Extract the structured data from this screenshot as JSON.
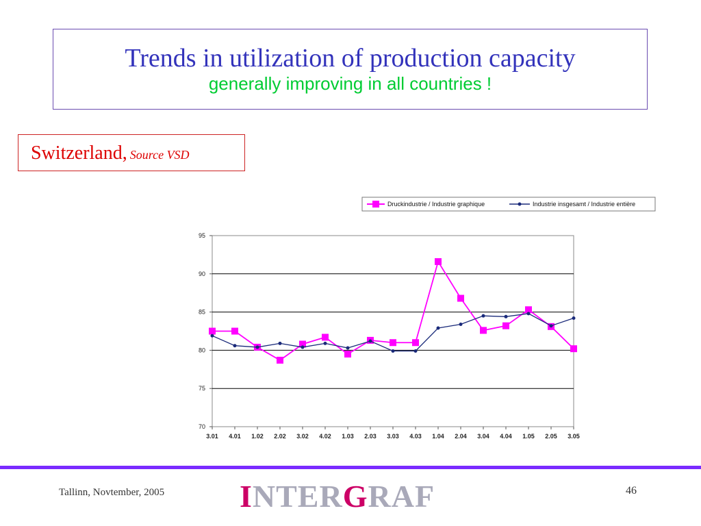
{
  "slide": {
    "title": "Trends in utilization of production capacity",
    "subtitle": "generally improving in all countries !",
    "country": "Switzerland,",
    "source": "Source VSD",
    "footer_left": "Tallinn, Novtember, 2005",
    "logo_parts": [
      "I",
      "NTER",
      "G",
      "RAF"
    ],
    "page_number": "46"
  },
  "chart_data": {
    "type": "line",
    "categories": [
      "3.01",
      "4.01",
      "1.02",
      "2.02",
      "3.02",
      "4.02",
      "1.03",
      "2.03",
      "3.03",
      "4.03",
      "1.04",
      "2.04",
      "3.04",
      "4.04",
      "1.05",
      "2.05",
      "3.05"
    ],
    "ylim": [
      70,
      95
    ],
    "yticks": [
      "70",
      "75",
      "80",
      "85",
      "90",
      "95"
    ],
    "grid": true,
    "legend_position": "top-right",
    "series": [
      {
        "name": "Druckindustrie / Industrie graphique",
        "color": "#ff00ff",
        "marker": "square",
        "values": [
          82.5,
          82.5,
          80.4,
          78.7,
          80.8,
          81.7,
          79.5,
          81.3,
          81.0,
          81.0,
          91.6,
          86.8,
          82.6,
          83.2,
          85.3,
          83.1,
          80.2
        ]
      },
      {
        "name": "Industrie insgesamt / Industrie entière",
        "color": "#1a2a7a",
        "marker": "dot",
        "values": [
          81.9,
          80.6,
          80.4,
          80.9,
          80.4,
          80.9,
          80.3,
          81.2,
          79.9,
          79.9,
          82.9,
          83.4,
          84.5,
          84.4,
          84.8,
          83.2,
          84.2
        ]
      }
    ]
  }
}
